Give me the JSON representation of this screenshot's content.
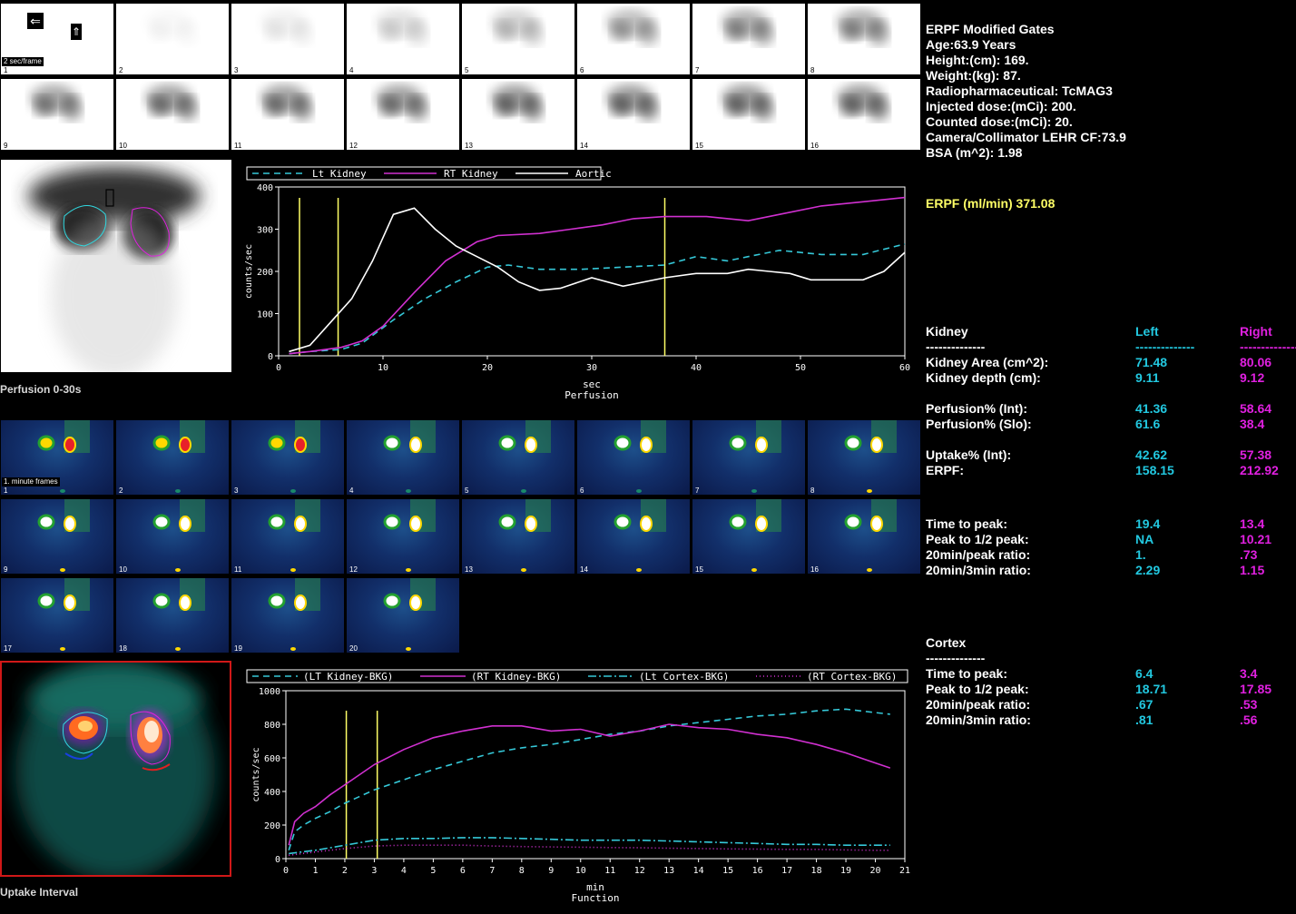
{
  "labels": {
    "sec_per_frame": "2 sec/frame",
    "min_frames": "1. minute frames",
    "perfusion_image": "Perfusion 0-30s",
    "uptake_image": "Uptake Interval"
  },
  "gate_arrows": {
    "left": "⇐",
    "up": "⇑"
  },
  "frames": {
    "perfusion_numbers": [
      "1",
      "2",
      "3",
      "4",
      "5",
      "6",
      "7",
      "8",
      "9",
      "10",
      "11",
      "12",
      "13",
      "14",
      "15",
      "16"
    ],
    "minute_numbers": [
      "1",
      "2",
      "3",
      "4",
      "5",
      "6",
      "7",
      "8",
      "9",
      "10",
      "11",
      "12",
      "13",
      "14",
      "15",
      "16",
      "17",
      "18",
      "19",
      "20"
    ]
  },
  "chart_data": [
    {
      "type": "line",
      "title": "",
      "xlabel": "sec",
      "xlabel2": "Perfusion",
      "ylabel": "counts/sec",
      "xlim": [
        0,
        60
      ],
      "ylim": [
        0,
        400
      ],
      "x_ticks": [
        "0",
        "10",
        "20",
        "30",
        "40",
        "50",
        "60"
      ],
      "y_ticks": [
        "0",
        "100",
        "200",
        "300",
        "400"
      ],
      "legend": [
        "Lt Kidney",
        "RT Kidney",
        "Aortic"
      ],
      "markers": [
        2,
        5.7,
        37
      ],
      "series": [
        {
          "name": "Lt Kidney",
          "color": "#35c8d8",
          "dash": "dash",
          "x": [
            1,
            3,
            6,
            8,
            11,
            14,
            17,
            20,
            22,
            25,
            29,
            33,
            37,
            40,
            43,
            45,
            48,
            52,
            56,
            60
          ],
          "y": [
            5,
            10,
            15,
            30,
            85,
            135,
            175,
            210,
            215,
            205,
            205,
            210,
            215,
            235,
            225,
            235,
            250,
            240,
            240,
            265
          ]
        },
        {
          "name": "RT Kidney",
          "color": "#d030d0",
          "dash": "solid",
          "x": [
            1,
            3,
            6,
            8,
            10,
            13,
            16,
            19,
            21,
            25,
            28,
            31,
            34,
            37,
            41,
            45,
            48,
            52,
            56,
            60
          ],
          "y": [
            5,
            10,
            20,
            35,
            70,
            150,
            225,
            270,
            285,
            290,
            300,
            310,
            325,
            330,
            330,
            320,
            335,
            355,
            365,
            375
          ]
        },
        {
          "name": "Aortic",
          "color": "#ffffff",
          "dash": "solid",
          "x": [
            1,
            3,
            5,
            7,
            9,
            11,
            13,
            15,
            17,
            19,
            21,
            23,
            25,
            27,
            30,
            33,
            37,
            40,
            43,
            45,
            47,
            49,
            51,
            53,
            56,
            58,
            60
          ],
          "y": [
            10,
            25,
            80,
            135,
            225,
            335,
            350,
            300,
            260,
            235,
            210,
            175,
            155,
            160,
            185,
            165,
            185,
            195,
            195,
            205,
            200,
            195,
            180,
            180,
            180,
            200,
            245
          ]
        }
      ]
    },
    {
      "type": "line",
      "title": "",
      "xlabel": "min",
      "xlabel2": "Function",
      "ylabel": "counts/sec",
      "xlim": [
        0,
        21
      ],
      "ylim": [
        0,
        1000
      ],
      "x_ticks": [
        "0",
        "1",
        "2",
        "3",
        "4",
        "5",
        "6",
        "7",
        "8",
        "9",
        "10",
        "11",
        "12",
        "13",
        "14",
        "15",
        "16",
        "17",
        "18",
        "19",
        "20",
        "21"
      ],
      "y_ticks": [
        "0",
        "200",
        "400",
        "600",
        "800",
        "1000"
      ],
      "legend": [
        "(LT Kidney-BKG)",
        "(RT Kidney-BKG)",
        "(Lt Cortex-BKG)",
        "(RT Cortex-BKG)"
      ],
      "markers": [
        2.05,
        3.1
      ],
      "series": [
        {
          "name": "(LT Kidney-BKG)",
          "color": "#35c8d8",
          "dash": "dash",
          "x": [
            0.1,
            0.3,
            0.6,
            1,
            1.5,
            2,
            3,
            4,
            5,
            6,
            7,
            8,
            9,
            10,
            11,
            12,
            13,
            14,
            15,
            16,
            17,
            18,
            19,
            20,
            20.5
          ],
          "y": [
            50,
            160,
            200,
            240,
            280,
            330,
            410,
            470,
            530,
            580,
            630,
            660,
            680,
            710,
            740,
            760,
            790,
            810,
            830,
            850,
            860,
            880,
            890,
            870,
            860
          ]
        },
        {
          "name": "(RT Kidney-BKG)",
          "color": "#d030d0",
          "dash": "solid",
          "x": [
            0.1,
            0.3,
            0.6,
            1,
            1.5,
            2,
            3,
            4,
            5,
            6,
            7,
            8,
            9,
            10,
            11,
            12,
            13,
            14,
            15,
            16,
            17,
            18,
            19,
            20,
            20.5
          ],
          "y": [
            80,
            220,
            270,
            310,
            380,
            440,
            560,
            650,
            720,
            760,
            790,
            790,
            760,
            770,
            730,
            760,
            800,
            780,
            770,
            740,
            720,
            680,
            630,
            570,
            540
          ]
        },
        {
          "name": "(Lt Cortex-BKG)",
          "color": "#35c8d8",
          "dash": "dashdot",
          "x": [
            0.1,
            1,
            2,
            3,
            4,
            5,
            6,
            7,
            8,
            9,
            10,
            11,
            12,
            13,
            14,
            15,
            16,
            17,
            18,
            19,
            20,
            20.5
          ],
          "y": [
            30,
            50,
            80,
            110,
            120,
            120,
            125,
            125,
            120,
            115,
            110,
            110,
            110,
            105,
            100,
            95,
            90,
            85,
            85,
            80,
            80,
            80
          ]
        },
        {
          "name": "(RT Cortex-BKG)",
          "color": "#d030d0",
          "dash": "dot",
          "x": [
            0.1,
            1,
            2,
            3,
            4,
            5,
            6,
            7,
            8,
            9,
            10,
            11,
            12,
            13,
            14,
            15,
            16,
            17,
            18,
            19,
            20,
            20.5
          ],
          "y": [
            20,
            40,
            60,
            75,
            80,
            80,
            80,
            75,
            72,
            70,
            68,
            66,
            65,
            62,
            60,
            58,
            57,
            55,
            55,
            52,
            50,
            50
          ]
        }
      ]
    }
  ],
  "info": {
    "title": "ERPF Modified Gates",
    "age": "Age:63.9 Years",
    "height": "Height:(cm): 169.",
    "weight": "Weight:(kg): 87.",
    "radiopharm": "Radiopharmaceutical: TcMAG3",
    "injected": "Injected dose:(mCi): 200.",
    "counted": "Counted dose:(mCi): 20.",
    "camera": "Camera/Collimator LEHR CF:73.9",
    "bsa": "BSA (m^2): 1.98",
    "erpf_total": "ERPF (ml/min) 371.08"
  },
  "kidney": {
    "heading": "Kidney",
    "sep": "--------------",
    "left_head": "Left",
    "right_head": "Right",
    "left_sep": "--------------",
    "right_sep": "--------------",
    "rows": [
      {
        "label": "Kidney Area (cm^2):",
        "left": "71.48",
        "right": "80.06"
      },
      {
        "label": "Kidney depth (cm):",
        "left": "9.11",
        "right": "9.12"
      },
      {
        "label": "Perfusion% (Int):",
        "left": "41.36",
        "right": "58.64"
      },
      {
        "label": "Perfusion% (Slo):",
        "left": "61.6",
        "right": "38.4"
      },
      {
        "label": "Uptake% (Int):",
        "left": "42.62",
        "right": "57.38"
      },
      {
        "label": "ERPF:",
        "left": "158.15",
        "right": "212.92"
      },
      {
        "label": "Time to peak:",
        "left": "19.4",
        "right": "13.4"
      },
      {
        "label": "Peak to 1/2 peak:",
        "left": "NA",
        "right": "10.21"
      },
      {
        "label": "20min/peak ratio:",
        "left": "1.",
        "right": ".73"
      },
      {
        "label": "20min/3min ratio:",
        "left": "2.29",
        "right": "1.15"
      }
    ]
  },
  "cortex": {
    "heading": "Cortex",
    "sep": "--------------",
    "rows": [
      {
        "label": "Time to peak:",
        "left": "6.4",
        "right": "3.4"
      },
      {
        "label": "Peak to 1/2 peak:",
        "left": "18.71",
        "right": "17.85"
      },
      {
        "label": "20min/peak ratio:",
        "left": ".67",
        "right": ".53"
      },
      {
        "label": "20min/3min ratio:",
        "left": ".81",
        "right": ".56"
      }
    ]
  },
  "colors": {
    "left": "#22c8e0",
    "right": "#e020e0",
    "erpf": "#ffff66",
    "marker": "#ffff66"
  }
}
